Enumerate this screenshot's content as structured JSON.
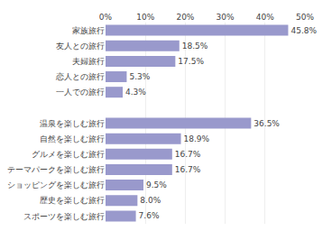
{
  "chart_data": {
    "type": "bar",
    "orientation": "horizontal",
    "categories": [
      "スポーツを楽しむ旅行",
      "歴史を楽しむ旅行",
      "ショッピングを楽しむ旅行",
      "テーマパークを楽しむ旅行",
      "グルメを楽しむ旅行",
      "自然を楽しむ旅行",
      "温泉を楽しむ旅行",
      null,
      "一人での旅行",
      "恋人との旅行",
      "夫婦旅行",
      "友人との旅行",
      "家族旅行"
    ],
    "values": [
      7.6,
      8.0,
      9.5,
      16.7,
      16.7,
      18.9,
      36.5,
      null,
      4.3,
      5.3,
      17.5,
      18.5,
      45.8
    ],
    "value_labels": [
      "7.6%",
      "8.0%",
      "9.5%",
      "16.7%",
      "16.7%",
      "18.9%",
      "36.5%",
      null,
      "4.3%",
      "5.3%",
      "17.5%",
      "18.5%",
      "45.8%"
    ],
    "color": "#9999cc",
    "xlim": [
      0,
      50
    ],
    "xticks": [
      {
        "value": 0,
        "label": "0%"
      },
      {
        "value": 10,
        "label": "10%"
      },
      {
        "value": 20,
        "label": "20%"
      },
      {
        "value": 30,
        "label": "30%"
      },
      {
        "value": 40,
        "label": "40%"
      },
      {
        "value": 50,
        "label": "50%"
      }
    ],
    "grid": true,
    "data_labels": true
  }
}
